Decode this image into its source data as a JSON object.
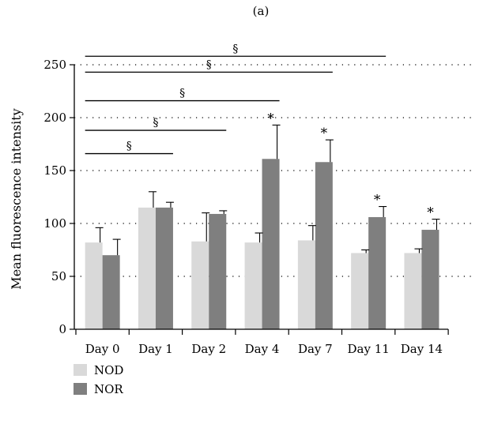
{
  "chart_data": {
    "type": "bar",
    "panel_label": "(a)",
    "ylabel": "Mean fluorescence intensity",
    "xlabel": "",
    "ylim": [
      0,
      250
    ],
    "yticks": [
      0,
      50,
      100,
      150,
      200,
      250
    ],
    "grid": "dotted-horizontal",
    "categories": [
      "Day 0",
      "Day 1",
      "Day 2",
      "Day 4",
      "Day 7",
      "Day 11",
      "Day 14"
    ],
    "series": [
      {
        "name": "NOD",
        "color": "#d9d9d9",
        "values": [
          82,
          115,
          83,
          82,
          84,
          72,
          72
        ],
        "errors": [
          14,
          15,
          27,
          9,
          14,
          3,
          4
        ]
      },
      {
        "name": "NOR",
        "color": "#7f7f7f",
        "values": [
          70,
          115,
          109,
          161,
          158,
          106,
          94
        ],
        "errors": [
          15,
          5,
          3,
          32,
          21,
          10,
          10
        ]
      }
    ],
    "significance_star": "*",
    "star_categories": [
      "Day 4",
      "Day 7",
      "Day 11",
      "Day 14"
    ],
    "comparisons": [
      {
        "from": "Day 0",
        "to": "Day 1",
        "label": "§",
        "y": 166
      },
      {
        "from": "Day 0",
        "to": "Day 2",
        "label": "§",
        "y": 188
      },
      {
        "from": "Day 0",
        "to": "Day 4",
        "label": "§",
        "y": 216
      },
      {
        "from": "Day 0",
        "to": "Day 7",
        "label": "§",
        "y": 243
      },
      {
        "from": "Day 0",
        "to": "Day 11",
        "label": "§",
        "y": 258
      }
    ],
    "legend": {
      "placement": "bottom-left",
      "items": [
        "NOD",
        "NOR"
      ]
    }
  }
}
